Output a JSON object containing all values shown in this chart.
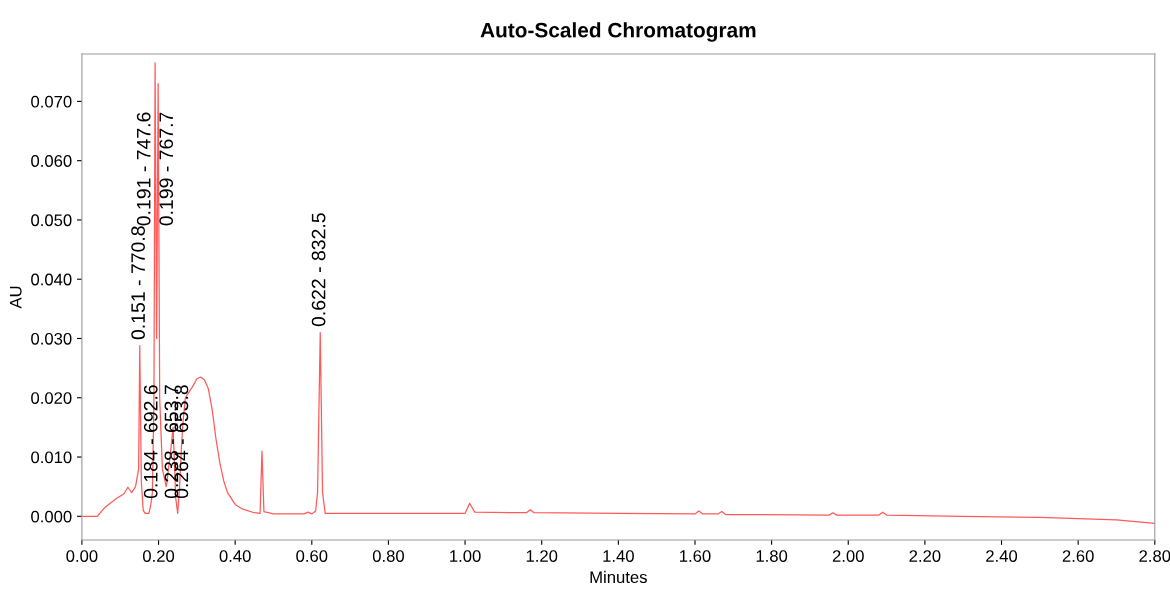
{
  "chart_data": {
    "type": "line",
    "title": "Auto-Scaled Chromatogram",
    "xlabel": "Minutes",
    "ylabel": "AU",
    "xlim": [
      0,
      2.8
    ],
    "ylim": [
      -0.004,
      0.078
    ],
    "xticks": [
      {
        "value": 0,
        "label": "0.00"
      },
      {
        "value": 0.2,
        "label": "0.20"
      },
      {
        "value": 0.4,
        "label": "0.40"
      },
      {
        "value": 0.6,
        "label": "0.60"
      },
      {
        "value": 0.8,
        "label": "0.80"
      },
      {
        "value": 1.0,
        "label": "1.00"
      },
      {
        "value": 1.2,
        "label": "1.20"
      },
      {
        "value": 1.4,
        "label": "1.40"
      },
      {
        "value": 1.6,
        "label": "1.60"
      },
      {
        "value": 1.8,
        "label": "1.80"
      },
      {
        "value": 2.0,
        "label": "2.00"
      },
      {
        "value": 2.2,
        "label": "2.20"
      },
      {
        "value": 2.4,
        "label": "2.40"
      },
      {
        "value": 2.6,
        "label": "2.60"
      },
      {
        "value": 2.8,
        "label": "2.80"
      }
    ],
    "yticks": [
      {
        "value": 0,
        "label": "0.000"
      },
      {
        "value": 0.01,
        "label": "0.010"
      },
      {
        "value": 0.02,
        "label": "0.020"
      },
      {
        "value": 0.03,
        "label": "0.030"
      },
      {
        "value": 0.04,
        "label": "0.040"
      },
      {
        "value": 0.05,
        "label": "0.050"
      },
      {
        "value": 0.06,
        "label": "0.060"
      },
      {
        "value": 0.07,
        "label": "0.070"
      }
    ],
    "grid": false,
    "series": [
      {
        "color": "#ff5a5a",
        "x": [
          0,
          0.04,
          0.06,
          0.09,
          0.11,
          0.12,
          0.13,
          0.14,
          0.148,
          0.151,
          0.155,
          0.16,
          0.165,
          0.175,
          0.18,
          0.184,
          0.188,
          0.191,
          0.195,
          0.199,
          0.203,
          0.21,
          0.22,
          0.23,
          0.238,
          0.245,
          0.25,
          0.255,
          0.26,
          0.264,
          0.27,
          0.28,
          0.29,
          0.3,
          0.31,
          0.32,
          0.33,
          0.34,
          0.35,
          0.36,
          0.37,
          0.38,
          0.4,
          0.42,
          0.45,
          0.465,
          0.47,
          0.475,
          0.5,
          0.58,
          0.59,
          0.6,
          0.61,
          0.615,
          0.622,
          0.628,
          0.635,
          0.8,
          1.0,
          1.012,
          1.025,
          1.16,
          1.17,
          1.18,
          1.4,
          1.6,
          1.61,
          1.62,
          1.66,
          1.67,
          1.68,
          1.95,
          1.96,
          1.97,
          2.08,
          2.09,
          2.1,
          2.3,
          2.5,
          2.7,
          2.8
        ],
        "values": [
          0,
          0,
          0.0015,
          0.003,
          0.0038,
          0.0049,
          0.004,
          0.005,
          0.008,
          0.0288,
          0.006,
          0.001,
          0.0005,
          0.0005,
          0.002,
          0.004,
          0.02,
          0.0765,
          0.03,
          0.073,
          0.02,
          0.008,
          0.005,
          0.01,
          0.015,
          0.003,
          0.0005,
          0.005,
          0.012,
          0.016,
          0.02,
          0.021,
          0.022,
          0.0232,
          0.0235,
          0.023,
          0.0215,
          0.018,
          0.013,
          0.009,
          0.006,
          0.004,
          0.002,
          0.0012,
          0.0006,
          0.0005,
          0.011,
          0.0008,
          0.0004,
          0.0004,
          0.0007,
          0.0004,
          0.0009,
          0.004,
          0.031,
          0.004,
          0.0005,
          0.0005,
          0.0005,
          0.0022,
          0.0007,
          0.0006,
          0.0011,
          0.0006,
          0.0005,
          0.0004,
          0.0009,
          0.0004,
          0.0004,
          0.0008,
          0.0003,
          0.0002,
          0.0006,
          0.0002,
          0.0002,
          0.0007,
          0.0002,
          0,
          -0.0002,
          -0.0006,
          -0.0012
        ]
      }
    ],
    "annotations": [
      {
        "text": "0.151 - 770.8",
        "x": 0.151,
        "y": 0.0288
      },
      {
        "text": "0.184 - 692.6",
        "x": 0.184,
        "y": 0.002
      },
      {
        "text": "0.191 - 747.6",
        "x": 0.191,
        "y": 0.048
      },
      {
        "text": "0.199 - 767.7",
        "x": 0.199,
        "y": 0.048
      },
      {
        "text": "0.238 - 653.7",
        "x": 0.238,
        "y": 0.002
      },
      {
        "text": "0.264 - 653.8",
        "x": 0.264,
        "y": 0.002
      },
      {
        "text": "0.622 - 832.5",
        "x": 0.622,
        "y": 0.031
      }
    ]
  }
}
